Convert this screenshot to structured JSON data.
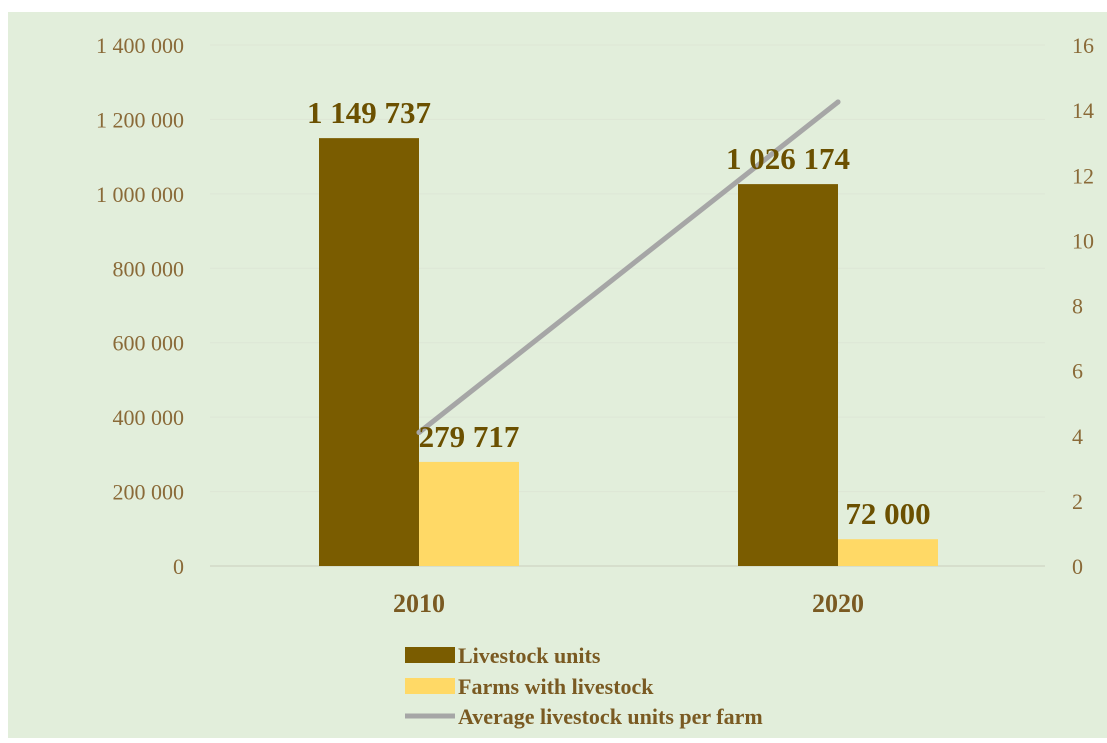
{
  "chart_data": {
    "type": "bar",
    "categories": [
      "2010",
      "2020"
    ],
    "series": [
      {
        "name": "Livestock units",
        "type": "bar",
        "axis": "left",
        "color": "#7a5c00",
        "values": [
          1149737,
          1026174
        ],
        "labels": [
          "1 149 737",
          "1 026 174"
        ]
      },
      {
        "name": "Farms with livestock",
        "type": "bar",
        "axis": "left",
        "color": "#ffd966",
        "values": [
          279717,
          72000
        ],
        "labels": [
          "279 717",
          "72 000"
        ]
      },
      {
        "name": "Average livestock units per farm",
        "type": "line",
        "axis": "right",
        "color": "#a6a6a6",
        "values": [
          4.1,
          14.25
        ]
      }
    ],
    "y_left": {
      "min": 0,
      "max": 1400000,
      "ticks": [
        0,
        200000,
        400000,
        600000,
        800000,
        1000000,
        1200000,
        1400000
      ],
      "tick_labels": [
        "0",
        "200 000",
        "400 000",
        "600 000",
        "800 000",
        "1 000 000",
        "1 200 000",
        "1 400 000"
      ]
    },
    "y_right": {
      "min": 0,
      "max": 16,
      "ticks": [
        0,
        2,
        4,
        6,
        8,
        10,
        12,
        14,
        16
      ],
      "tick_labels": [
        "0",
        "2",
        "4",
        "6",
        "8",
        "10",
        "12",
        "14",
        "16"
      ]
    },
    "grid": true,
    "legend_position": "bottom",
    "background": "#e2eedb"
  }
}
